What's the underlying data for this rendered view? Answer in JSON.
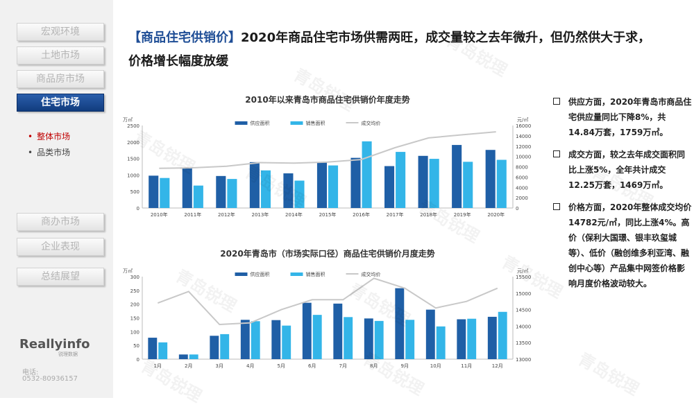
{
  "sidebar": {
    "nav": [
      "宏观环境",
      "土地市场",
      "商品房市场",
      "住宅市场"
    ],
    "subnav": [
      "整体市场",
      "品类市场"
    ],
    "nav2": [
      "商办市场",
      "企业表现",
      "总结展望"
    ],
    "logo": "Reallyinfo",
    "logo_sub": "锐理数据",
    "phone_label": "电话:",
    "phone": "0532-80936157"
  },
  "header": {
    "tag": "【商品住宅供销价】",
    "line1": "2020年商品住宅市场供需两旺，成交量较之去年微升，但仍然供大于求，",
    "line2": "价格增长幅度放缓"
  },
  "watermark": "青岛锐理",
  "notes": [
    "供应方面，2020年青岛市商品住宅供应量同比下降8%，共14.84万套，1759万㎡。",
    "成交方面，较之去年成交面积同比上涨5%，全年共计成交12.25万套，1469万㎡。",
    "价格方面，2020年整体成交均价14782元/㎡，同比上涨4%。高价（保利大国璟、银丰玖玺城等）、低价（融创维多利亚湾、融创中心等）产品集中网签价格影响月度价格波动较大。"
  ],
  "colors": {
    "supply": "#1f5fa6",
    "sales": "#33b5e8",
    "price": "#c8c8c8"
  },
  "chart_data": [
    {
      "type": "bar",
      "title": "2010年以来青岛市商品住宅供销价年度走势",
      "left_unit": "万㎡",
      "right_unit": "元/㎡",
      "categories": [
        "2010年",
        "2011年",
        "2012年",
        "2013年",
        "2014年",
        "2015年",
        "2016年",
        "2017年",
        "2018年",
        "2019年",
        "2020年"
      ],
      "series": [
        {
          "name": "供应面积",
          "values": [
            980,
            1200,
            970,
            1390,
            1050,
            1390,
            1520,
            1270,
            1580,
            1910,
            1760
          ]
        },
        {
          "name": "销售面积",
          "values": [
            910,
            680,
            880,
            1140,
            830,
            1290,
            2020,
            1700,
            1490,
            1400,
            1460
          ]
        },
        {
          "name": "成交均价",
          "axis": "right",
          "values": [
            7700,
            7800,
            8100,
            8800,
            8700,
            8900,
            9400,
            11700,
            13600,
            14200,
            14780
          ]
        }
      ],
      "ylim": [
        0,
        2500
      ],
      "yticks": [
        0,
        500,
        1000,
        1500,
        2000,
        2500
      ],
      "y2lim": [
        0,
        16000
      ],
      "y2ticks": [
        0,
        2000,
        4000,
        6000,
        8000,
        10000,
        12000,
        14000,
        16000
      ],
      "legend": "top"
    },
    {
      "type": "bar",
      "title": "2020年青岛市（市场实际口径）商品住宅供销价月度走势",
      "left_unit": "万㎡",
      "right_unit": "元/㎡",
      "categories": [
        "1月",
        "2月",
        "3月",
        "4月",
        "5月",
        "6月",
        "7月",
        "8月",
        "9月",
        "10月",
        "11月",
        "12月"
      ],
      "series": [
        {
          "name": "供应面积",
          "values": [
            78,
            17,
            85,
            143,
            142,
            205,
            202,
            148,
            258,
            180,
            145,
            154
          ]
        },
        {
          "name": "销售面积",
          "values": [
            61,
            17,
            91,
            138,
            122,
            161,
            153,
            139,
            143,
            119,
            147,
            172
          ]
        },
        {
          "name": "成交均价",
          "axis": "right",
          "values": [
            14700,
            15050,
            14050,
            14100,
            14500,
            14800,
            14800,
            15450,
            15150,
            14550,
            14750,
            15150
          ]
        }
      ],
      "ylim": [
        0,
        300
      ],
      "yticks": [
        0,
        50,
        100,
        150,
        200,
        250,
        300
      ],
      "y2lim": [
        13000,
        15500
      ],
      "y2ticks": [
        13000,
        13500,
        14000,
        14500,
        15000,
        15500
      ],
      "legend": "top"
    }
  ]
}
